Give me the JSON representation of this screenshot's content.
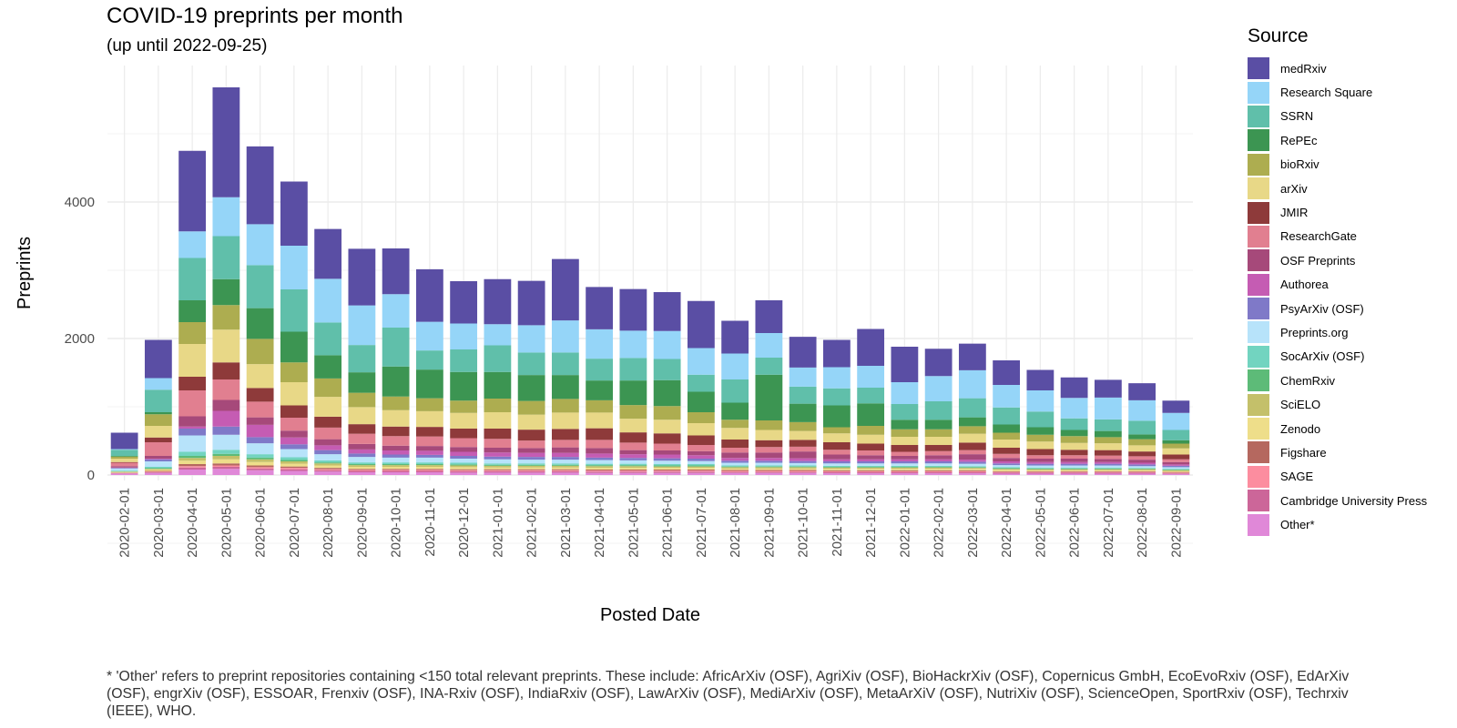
{
  "chart_data": {
    "type": "bar",
    "stacked": true,
    "title": "COVID-19 preprints per month",
    "subtitle": "(up until 2022-09-25)",
    "xlabel": "Posted Date",
    "ylabel": "Preprints",
    "ylim": [
      0,
      5900
    ],
    "yticks": [
      0,
      2000,
      4000
    ],
    "ytick_labels": [
      "0",
      "2000",
      "4000"
    ],
    "grid": true,
    "legend_title": "Source",
    "legend_position": "right",
    "categories": [
      "2020-02-01",
      "2020-03-01",
      "2020-04-01",
      "2020-05-01",
      "2020-06-01",
      "2020-07-01",
      "2020-08-01",
      "2020-09-01",
      "2020-10-01",
      "2020-11-01",
      "2020-12-01",
      "2021-01-01",
      "2021-02-01",
      "2021-03-01",
      "2021-04-01",
      "2021-05-01",
      "2021-06-01",
      "2021-07-01",
      "2021-08-01",
      "2021-09-01",
      "2021-10-01",
      "2021-11-01",
      "2021-12-01",
      "2022-01-01",
      "2022-02-01",
      "2022-03-01",
      "2022-04-01",
      "2022-05-01",
      "2022-06-01",
      "2022-07-01",
      "2022-08-01",
      "2022-09-01"
    ],
    "series": [
      {
        "name": "Other*",
        "color": "#E088D8",
        "values": [
          20,
          30,
          80,
          90,
          70,
          60,
          50,
          40,
          40,
          40,
          35,
          35,
          35,
          35,
          30,
          30,
          30,
          30,
          30,
          30,
          30,
          25,
          25,
          25,
          25,
          25,
          20,
          20,
          20,
          20,
          20,
          15
        ]
      },
      {
        "name": "Cambridge University Press",
        "color": "#CC6699",
        "values": [
          5,
          10,
          30,
          30,
          25,
          25,
          20,
          20,
          20,
          20,
          20,
          20,
          20,
          20,
          20,
          20,
          20,
          20,
          15,
          15,
          15,
          15,
          15,
          15,
          15,
          15,
          15,
          15,
          15,
          15,
          15,
          10
        ]
      },
      {
        "name": "SAGE",
        "color": "#FC8D9F",
        "values": [
          5,
          10,
          20,
          20,
          20,
          20,
          15,
          15,
          15,
          15,
          15,
          15,
          15,
          15,
          15,
          15,
          15,
          15,
          15,
          15,
          15,
          15,
          15,
          15,
          15,
          15,
          10,
          10,
          10,
          10,
          10,
          10
        ]
      },
      {
        "name": "Figshare",
        "color": "#B5685F",
        "values": [
          5,
          10,
          30,
          30,
          25,
          20,
          20,
          15,
          15,
          15,
          15,
          15,
          15,
          15,
          15,
          15,
          15,
          15,
          15,
          15,
          15,
          15,
          15,
          15,
          15,
          15,
          10,
          10,
          10,
          10,
          10,
          10
        ]
      },
      {
        "name": "Zenodo",
        "color": "#EEDE8A",
        "values": [
          10,
          20,
          50,
          60,
          50,
          40,
          35,
          30,
          30,
          30,
          30,
          25,
          25,
          25,
          25,
          25,
          25,
          25,
          20,
          20,
          20,
          20,
          20,
          20,
          20,
          20,
          20,
          15,
          15,
          15,
          15,
          15
        ]
      },
      {
        "name": "SciELO",
        "color": "#C4C06A",
        "values": [
          5,
          10,
          40,
          50,
          40,
          35,
          30,
          25,
          25,
          25,
          25,
          25,
          25,
          25,
          25,
          25,
          20,
          20,
          20,
          20,
          20,
          20,
          20,
          20,
          20,
          15,
          15,
          15,
          15,
          15,
          15,
          10
        ]
      },
      {
        "name": "ChemRxiv",
        "color": "#5DBB78",
        "values": [
          5,
          10,
          30,
          30,
          25,
          20,
          15,
          15,
          15,
          15,
          15,
          15,
          15,
          15,
          15,
          15,
          15,
          15,
          10,
          10,
          10,
          10,
          10,
          10,
          10,
          10,
          10,
          10,
          10,
          10,
          10,
          10
        ]
      },
      {
        "name": "SocArXiv (OSF)",
        "color": "#72D4C0",
        "values": [
          10,
          20,
          60,
          60,
          50,
          40,
          30,
          25,
          25,
          25,
          25,
          20,
          20,
          20,
          20,
          20,
          20,
          20,
          15,
          15,
          15,
          15,
          15,
          15,
          15,
          15,
          15,
          15,
          15,
          15,
          10,
          10
        ]
      },
      {
        "name": "Preprints.org",
        "color": "#B7E3FA",
        "values": [
          30,
          80,
          240,
          220,
          160,
          120,
          90,
          80,
          70,
          70,
          60,
          60,
          55,
          55,
          55,
          50,
          50,
          45,
          40,
          40,
          35,
          35,
          35,
          35,
          35,
          35,
          30,
          30,
          30,
          30,
          25,
          25
        ]
      },
      {
        "name": "PsyArXiv (OSF)",
        "color": "#7F79C8",
        "values": [
          10,
          30,
          100,
          120,
          90,
          70,
          60,
          50,
          45,
          40,
          40,
          40,
          40,
          40,
          35,
          35,
          35,
          35,
          30,
          30,
          30,
          30,
          30,
          30,
          30,
          30,
          25,
          25,
          25,
          25,
          25,
          20
        ]
      },
      {
        "name": "Authorea",
        "color": "#C55CB3",
        "values": [
          5,
          10,
          30,
          230,
          180,
          100,
          70,
          60,
          60,
          60,
          60,
          60,
          60,
          60,
          60,
          55,
          55,
          50,
          40,
          40,
          40,
          30,
          30,
          30,
          30,
          30,
          30,
          25,
          25,
          25,
          25,
          20
        ]
      },
      {
        "name": "OSF Preprints",
        "color": "#A6497A",
        "values": [
          20,
          40,
          150,
          160,
          110,
          100,
          90,
          80,
          70,
          70,
          70,
          70,
          70,
          80,
          80,
          60,
          60,
          60,
          80,
          80,
          100,
          70,
          60,
          50,
          60,
          80,
          50,
          50,
          50,
          45,
          45,
          35
        ]
      },
      {
        "name": "ResearchGate",
        "color": "#E17F90",
        "values": [
          50,
          200,
          380,
          300,
          230,
          190,
          170,
          150,
          140,
          140,
          130,
          130,
          110,
          110,
          120,
          110,
          100,
          90,
          70,
          80,
          70,
          70,
          70,
          60,
          60,
          60,
          60,
          50,
          50,
          50,
          50,
          40
        ]
      },
      {
        "name": "JMIR",
        "color": "#8E3A3A",
        "values": [
          10,
          70,
          200,
          250,
          200,
          180,
          160,
          140,
          140,
          140,
          140,
          150,
          160,
          160,
          170,
          150,
          150,
          140,
          120,
          100,
          100,
          110,
          100,
          100,
          90,
          110,
          90,
          90,
          80,
          80,
          70,
          70
        ]
      },
      {
        "name": "arXiv",
        "color": "#E8D887",
        "values": [
          50,
          170,
          480,
          480,
          350,
          340,
          290,
          250,
          240,
          230,
          230,
          240,
          220,
          240,
          230,
          200,
          200,
          180,
          170,
          150,
          130,
          130,
          130,
          120,
          120,
          130,
          120,
          110,
          100,
          100,
          90,
          90
        ]
      },
      {
        "name": "bioRxiv",
        "color": "#ADAD50",
        "values": [
          30,
          170,
          320,
          360,
          370,
          290,
          270,
          210,
          200,
          190,
          180,
          200,
          200,
          200,
          180,
          200,
          200,
          160,
          120,
          140,
          130,
          90,
          130,
          110,
          110,
          110,
          100,
          100,
          100,
          90,
          90,
          70
        ]
      },
      {
        "name": "RePEc",
        "color": "#3C9552",
        "values": [
          10,
          30,
          320,
          380,
          450,
          450,
          340,
          300,
          440,
          420,
          420,
          390,
          380,
          350,
          290,
          360,
          380,
          300,
          250,
          670,
          270,
          320,
          330,
          140,
          140,
          130,
          120,
          110,
          90,
          90,
          70,
          50
        ]
      },
      {
        "name": "SSRN",
        "color": "#60BFAA",
        "values": [
          90,
          330,
          620,
          630,
          630,
          620,
          480,
          400,
          570,
          280,
          330,
          390,
          330,
          330,
          320,
          330,
          310,
          250,
          340,
          250,
          250,
          250,
          230,
          230,
          270,
          280,
          250,
          230,
          170,
          170,
          200,
          150
        ]
      },
      {
        "name": "Research Square",
        "color": "#95D5F8",
        "values": [
          10,
          170,
          390,
          570,
          600,
          640,
          640,
          580,
          490,
          420,
          380,
          310,
          400,
          470,
          430,
          400,
          410,
          390,
          380,
          360,
          280,
          310,
          320,
          320,
          370,
          410,
          330,
          310,
          300,
          320,
          300,
          250
        ]
      },
      {
        "name": "medRxiv",
        "color": "#5A4EA4",
        "values": [
          240,
          560,
          1180,
          1610,
          1140,
          940,
          730,
          830,
          670,
          770,
          620,
          660,
          650,
          900,
          620,
          610,
          570,
          690,
          480,
          480,
          450,
          400,
          540,
          520,
          400,
          390,
          360,
          300,
          300,
          260,
          250,
          180
        ]
      }
    ]
  },
  "footnote": "* 'Other' refers to preprint repositories containing <150 total relevant preprints. These include: AfricArXiv (OSF), AgriXiv (OSF), BioHackrXiv (OSF), Copernicus GmbH, EcoEvoRxiv (OSF), EdArXiv (OSF), engrXiv (OSF), ESSOAR, Frenxiv (OSF), INA-Rxiv (OSF), IndiaRxiv (OSF), LawArXiv (OSF), MediArXiv (OSF), MetaArXiV (OSF), NutriXiv (OSF), ScienceOpen, SportRxiv (OSF), Techrxiv (IEEE), WHO."
}
